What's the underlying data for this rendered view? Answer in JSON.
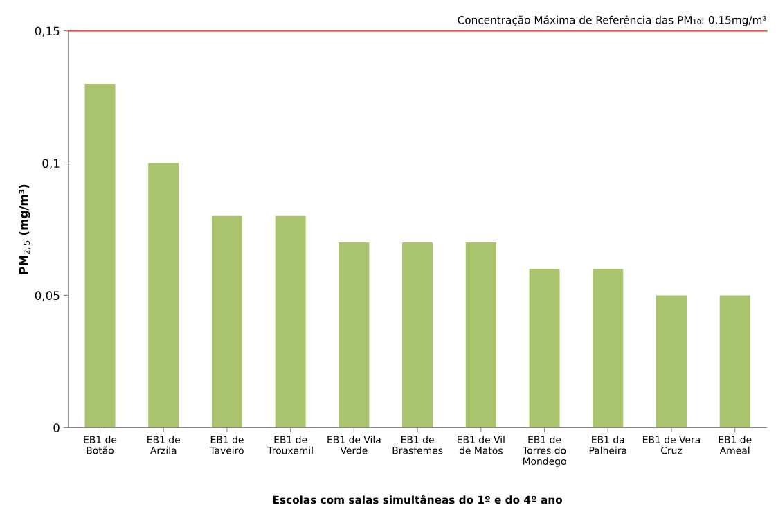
{
  "chart_data": {
    "type": "bar",
    "categories": [
      "EB1 de\nBotão",
      "EB1 de\nArzila",
      "EB1 de\nTaveiro",
      "EB1 de\nTrouxemil",
      "EB1 de Vila\nVerde",
      "EB1 de\nBrasfemes",
      "EB1 de Vil\nde Matos",
      "EB1 de\nTorres do\nMondego",
      "EB1 da\nPalheira",
      "EB1 de Vera\nCruz",
      "EB1 de\nAmeal"
    ],
    "values": [
      0.13,
      0.1,
      0.08,
      0.08,
      0.07,
      0.07,
      0.07,
      0.06,
      0.06,
      0.05,
      0.05
    ],
    "color": "#a9c46c",
    "ylim": [
      0,
      0.15
    ],
    "yticks": [
      {
        "value": 0,
        "label": "0"
      },
      {
        "value": 0.05,
        "label": "0,05"
      },
      {
        "value": 0.1,
        "label": "0,1"
      },
      {
        "value": 0.15,
        "label": "0,15"
      }
    ],
    "xlabel": "Escolas com salas simultâneas do 1º e do 4º ano",
    "ylabel": "PM$_{2,5}$ (mg/m³)",
    "ref_lines": [
      {
        "axis": "y",
        "value": 0.15,
        "label": "Concentração Máxima de Referência das PM₁₀: 0,15mg/m³",
        "color": "#e0604e"
      }
    ],
    "grid": false
  }
}
